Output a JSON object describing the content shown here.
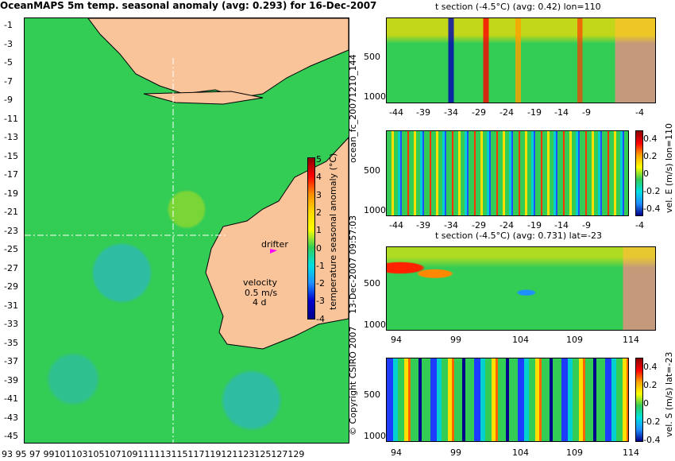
{
  "title": "OceanMAPS 5m temp. seasonal anomaly (avg: 0.293) for 16-Dec-2007",
  "map": {
    "lat_ticks": [
      "-1",
      "-3",
      "-5",
      "-7",
      "-9",
      "-11",
      "-13",
      "-15",
      "-17",
      "-19",
      "-21",
      "-23",
      "-25",
      "-27",
      "-29",
      "-31",
      "-33",
      "-35",
      "-37",
      "-39",
      "-41",
      "-43",
      "-45"
    ],
    "lon_ticks": [
      "93",
      "95",
      "97",
      "99",
      "101",
      "103",
      "105",
      "107",
      "109",
      "111",
      "113",
      "115",
      "117",
      "119",
      "121",
      "123",
      "125",
      "127",
      "129"
    ],
    "lon_axis_text": "93 95 97 99101103105107109111113115117119121123125127129",
    "drifter_label": "drifter",
    "velocity_label": "velocity",
    "velocity_value": "0.5 m/s",
    "velocity_days": "4 d"
  },
  "colorbar_temp": {
    "label": "temperature seasonal anomaly (°C)",
    "ticks": [
      "5",
      "4",
      "3",
      "2",
      "1",
      "0",
      "-1",
      "-2",
      "-3",
      "-4"
    ]
  },
  "panels": {
    "p1": {
      "title": "t section (-4.5°C) (avg: 0.42) lon=110",
      "x_ticks": [
        "-44",
        "-39",
        "-34",
        "-29",
        "-24",
        "-19",
        "-14",
        "-9",
        "-4"
      ],
      "y_ticks": [
        "500",
        "1000"
      ]
    },
    "p2": {
      "x_ticks": [
        "-44",
        "-39",
        "-34",
        "-29",
        "-24",
        "-19",
        "-14",
        "-9",
        "-4"
      ],
      "y_ticks": [
        "500",
        "1000"
      ],
      "cbar_label": "vel. E (m/s) lon=110",
      "cbar_ticks": [
        "0.4",
        "0.2",
        "0",
        "-0.2",
        "-0.4"
      ]
    },
    "p3": {
      "title": "t section (-4.5°C) (avg: 0.731) lat=-23",
      "x_ticks": [
        "94",
        "99",
        "104",
        "109",
        "114"
      ],
      "y_ticks": [
        "500",
        "1000"
      ]
    },
    "p4": {
      "x_ticks": [
        "94",
        "99",
        "104",
        "109",
        "114"
      ],
      "y_ticks": [
        "500",
        "1000"
      ],
      "cbar_label": "vel. S (m/s) lat=-23",
      "cbar_ticks": [
        "0.4",
        "0.2",
        "0",
        "-0.2",
        "-0.4"
      ]
    }
  },
  "side_texts": {
    "forecast_id": "ocean_fc_20071210_144",
    "timestamp": "13-Dec-2007 09:57:03",
    "copyright": "© Copyright CSIRO 2007"
  }
}
